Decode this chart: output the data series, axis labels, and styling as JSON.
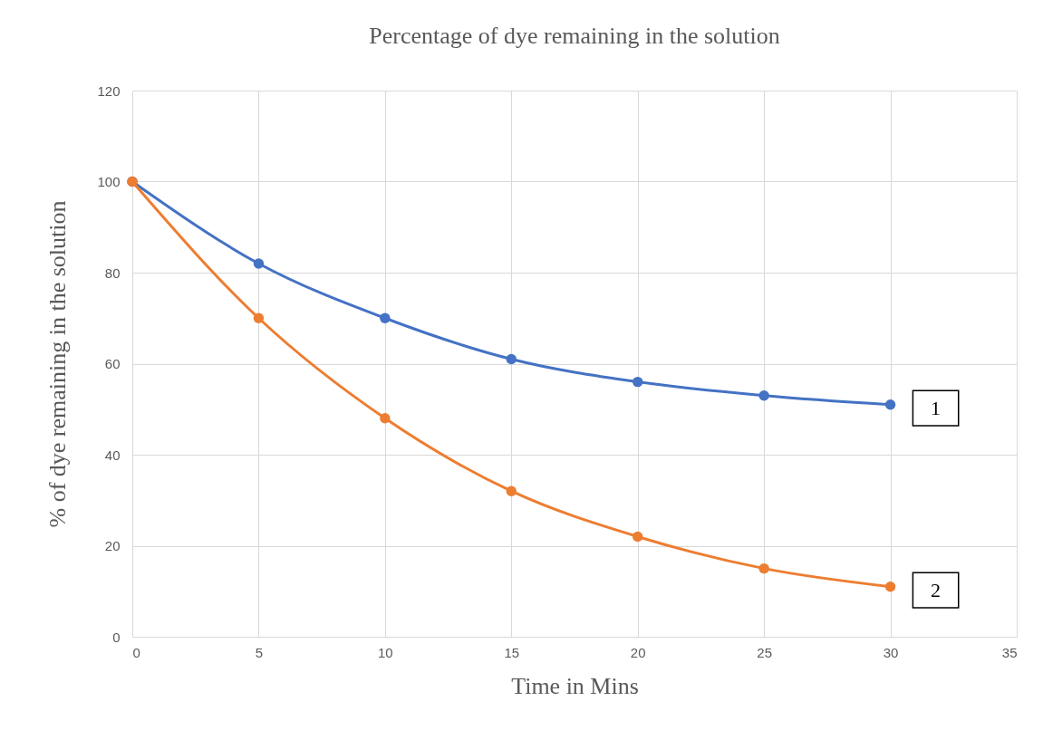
{
  "chart_data": {
    "type": "line",
    "title": "Percentage of dye remaining in the solution",
    "xlabel": "Time in Mins",
    "ylabel": "% of dye remaining in the solution",
    "x": [
      0,
      5,
      10,
      15,
      20,
      25,
      30
    ],
    "series": [
      {
        "name": "1",
        "color": "#4472c4",
        "values": [
          100,
          82,
          70,
          61,
          56,
          53,
          51
        ]
      },
      {
        "name": "2",
        "color": "#ed7d31",
        "values": [
          100,
          70,
          48,
          32,
          22,
          15,
          11
        ]
      }
    ],
    "xlim": [
      0,
      35
    ],
    "xticks": [
      0,
      5,
      10,
      15,
      20,
      25,
      30,
      35
    ],
    "ylim": [
      0,
      120
    ],
    "yticks": [
      0,
      20,
      40,
      60,
      80,
      100,
      120
    ],
    "grid": true,
    "legend": false,
    "marker": "circle",
    "line_style": "solid"
  }
}
